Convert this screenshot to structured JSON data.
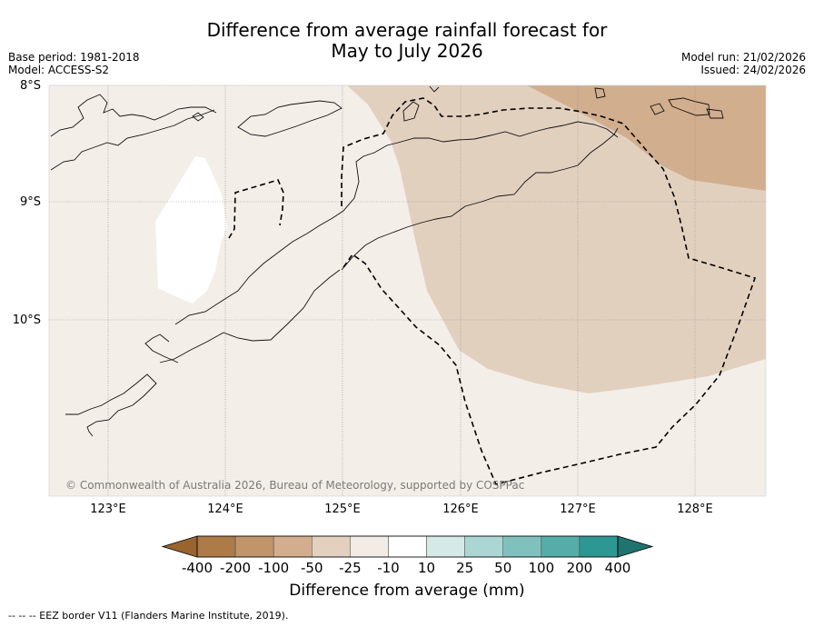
{
  "title": {
    "line1": "Difference from average rainfall forecast for",
    "line2": "May to July 2026"
  },
  "meta_left": {
    "base_period": "Base period: 1981-2018",
    "model": "Model: ACCESS-S2"
  },
  "meta_right": {
    "model_run": "Model run: 21/02/2026",
    "issued": "Issued: 24/02/2026"
  },
  "map": {
    "lat_labels": [
      "8°S",
      "9°S",
      "10°S"
    ],
    "lon_labels": [
      "123°E",
      "124°E",
      "125°E",
      "126°E",
      "127°E",
      "128°E"
    ],
    "copyright": "© Commonwealth of Australia 2026, Bureau of Meteorology, supported by COSPPac",
    "region_colors": {
      "near_average": "#f4eee9",
      "dry_25_50": "#e2d0bf",
      "dry_50_100": "#d1ae8e",
      "wet_10_25": "#ffffff"
    }
  },
  "colorbar": {
    "labels": [
      "-400",
      "-200",
      "-100",
      "-50",
      "-25",
      "-10",
      "10",
      "25",
      "50",
      "100",
      "200",
      "400"
    ],
    "colors": [
      "#9a6430",
      "#ad7a48",
      "#c19469",
      "#d2ae8f",
      "#e3d0be",
      "#f3ebe5",
      "#ffffff",
      "#d5eae7",
      "#abd6d3",
      "#80c1bd",
      "#56aca8",
      "#2d9793",
      "#1f7470"
    ],
    "title": "Difference from average (mm)"
  },
  "footer": "--  --  -- EEZ border V11 (Flanders Marine Institute, 2019)."
}
